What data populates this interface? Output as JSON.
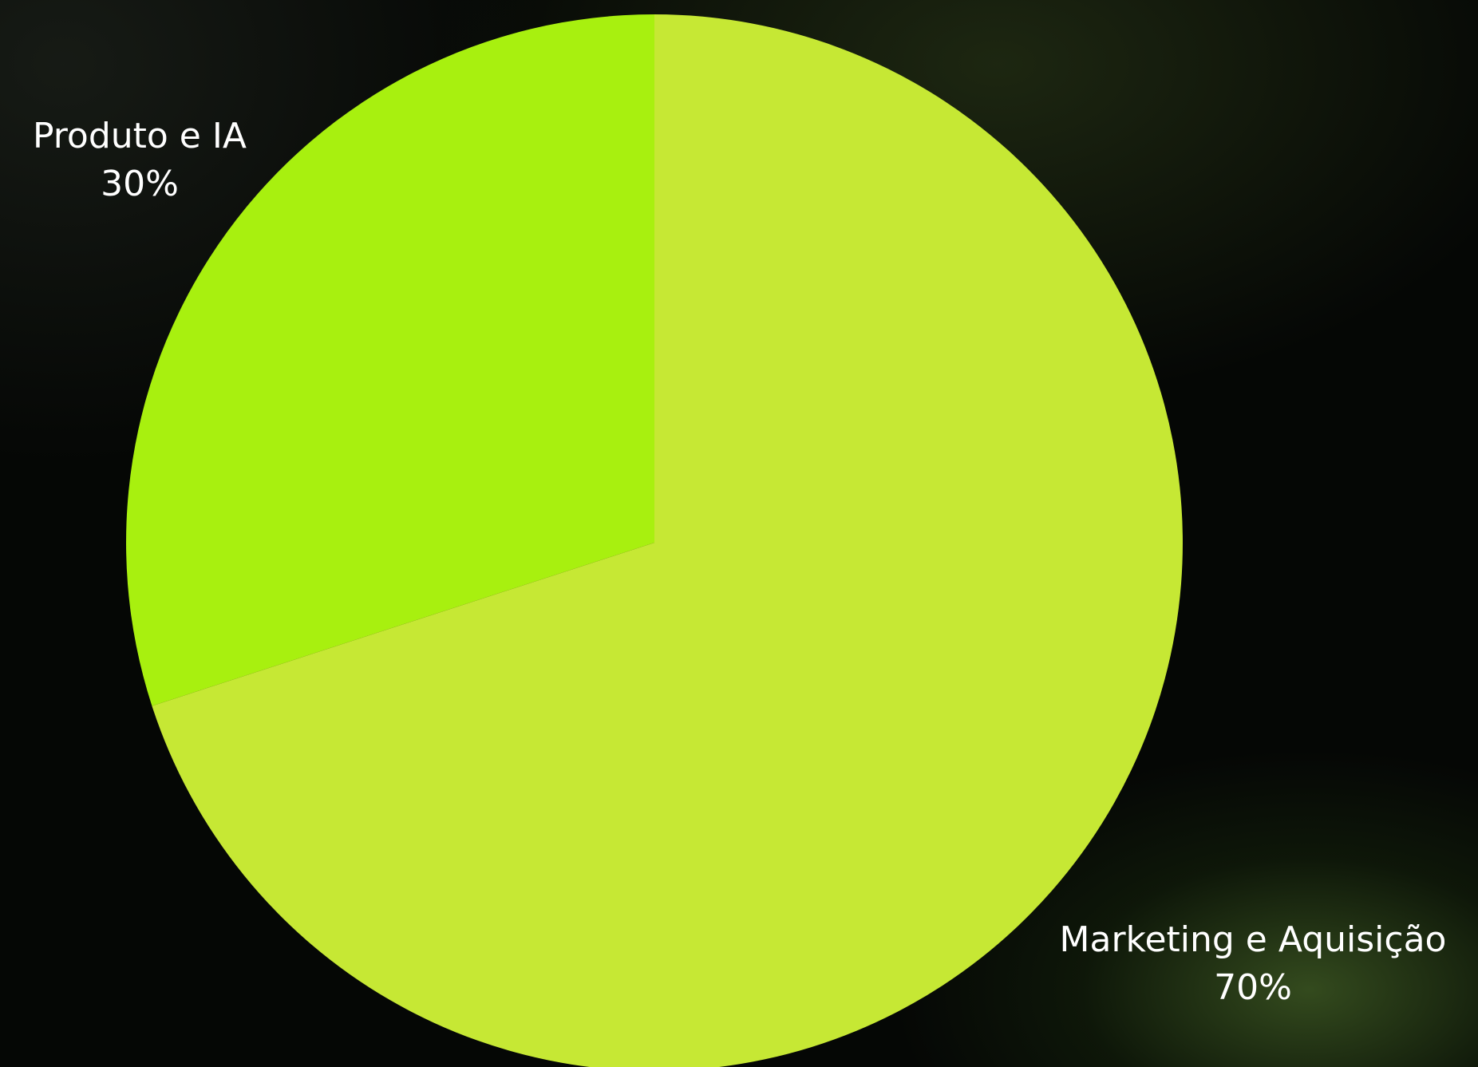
{
  "chart_data": {
    "type": "pie",
    "title": "",
    "start_angle_deg": 0,
    "direction": "counterclockwise",
    "slices": [
      {
        "name": "Produto e IA",
        "value": 30,
        "label": "30%",
        "color": "#a8f00f"
      },
      {
        "name": "Marketing e Aquisição",
        "value": 70,
        "label": "70%",
        "color": "#c6e834"
      }
    ],
    "legend": "none",
    "label_color": "#ffffff"
  }
}
